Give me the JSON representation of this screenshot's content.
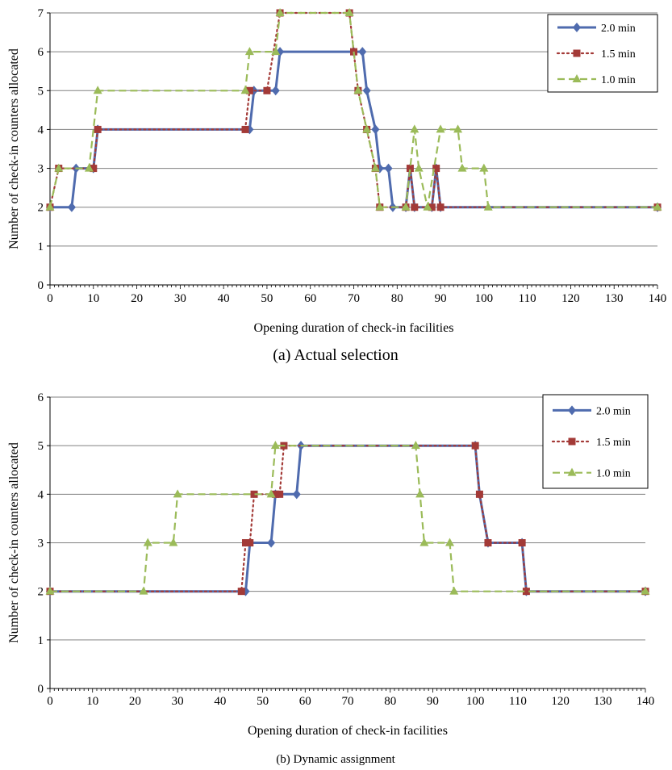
{
  "colors": {
    "series_2_0": "#4F6BAE",
    "series_1_5": "#A33A37",
    "series_1_0": "#9BBB59",
    "gridline": "#808080",
    "axis": "#000000"
  },
  "chart_data": [
    {
      "type": "line",
      "caption": "(a) Actual selection",
      "xlabel": "Opening duration of check-in facilities",
      "ylabel": "Number of check-in counters allocated",
      "xlim": [
        0,
        140
      ],
      "ylim": [
        0,
        7
      ],
      "xticks": [
        0,
        10,
        20,
        30,
        40,
        50,
        60,
        70,
        80,
        90,
        100,
        110,
        120,
        130,
        140
      ],
      "yticks": [
        0,
        1,
        2,
        3,
        4,
        5,
        6,
        7
      ],
      "grid": "horizontal",
      "legend_position": "top-right",
      "series": [
        {
          "name": "2.0 min",
          "color_key": "series_2_0",
          "marker": "diamond",
          "dash": "solid",
          "points": [
            [
              0,
              2
            ],
            [
              5,
              2
            ],
            [
              6,
              3
            ],
            [
              10,
              3
            ],
            [
              11,
              4
            ],
            [
              46,
              4
            ],
            [
              47,
              5
            ],
            [
              52,
              5
            ],
            [
              53,
              6
            ],
            [
              70,
              6
            ],
            [
              72,
              6
            ],
            [
              73,
              5
            ],
            [
              75,
              4
            ],
            [
              76,
              3
            ],
            [
              78,
              3
            ],
            [
              79,
              2
            ],
            [
              82,
              2
            ],
            [
              83,
              3
            ],
            [
              84,
              2
            ],
            [
              88,
              2
            ],
            [
              89,
              3
            ],
            [
              90,
              2
            ],
            [
              140,
              2
            ]
          ]
        },
        {
          "name": "1.5 min",
          "color_key": "series_1_5",
          "marker": "square",
          "dash": "dotted",
          "points": [
            [
              0,
              2
            ],
            [
              2,
              3
            ],
            [
              10,
              3
            ],
            [
              11,
              4
            ],
            [
              45,
              4
            ],
            [
              46,
              5
            ],
            [
              50,
              5
            ],
            [
              53,
              7
            ],
            [
              69,
              7
            ],
            [
              70,
              6
            ],
            [
              71,
              5
            ],
            [
              73,
              4
            ],
            [
              75,
              3
            ],
            [
              76,
              2
            ],
            [
              82,
              2
            ],
            [
              83,
              3
            ],
            [
              84,
              2
            ],
            [
              88,
              2
            ],
            [
              89,
              3
            ],
            [
              90,
              2
            ],
            [
              140,
              2
            ]
          ]
        },
        {
          "name": "1.0 min",
          "color_key": "series_1_0",
          "marker": "triangle",
          "dash": "dashed",
          "points": [
            [
              0,
              2
            ],
            [
              2,
              3
            ],
            [
              9,
              3
            ],
            [
              11,
              5
            ],
            [
              45,
              5
            ],
            [
              46,
              6
            ],
            [
              52,
              6
            ],
            [
              53,
              7
            ],
            [
              69,
              7
            ],
            [
              71,
              5
            ],
            [
              73,
              4
            ],
            [
              75,
              3
            ],
            [
              76,
              2
            ],
            [
              82,
              2
            ],
            [
              84,
              4
            ],
            [
              85,
              3
            ],
            [
              87,
              2
            ],
            [
              90,
              4
            ],
            [
              94,
              4
            ],
            [
              95,
              3
            ],
            [
              100,
              3
            ],
            [
              101,
              2
            ],
            [
              140,
              2
            ]
          ]
        }
      ]
    },
    {
      "type": "line",
      "caption": "(b) Dynamic assignment",
      "xlabel": "Opening duration of check-in facilities",
      "ylabel": "Number of check-in counters allocated",
      "xlim": [
        0,
        140
      ],
      "ylim": [
        0,
        6
      ],
      "xticks": [
        0,
        10,
        20,
        30,
        40,
        50,
        60,
        70,
        80,
        90,
        100,
        110,
        120,
        130,
        140
      ],
      "yticks": [
        0,
        1,
        2,
        3,
        4,
        5,
        6
      ],
      "grid": "horizontal",
      "legend_position": "top-right",
      "series": [
        {
          "name": "2.0 min",
          "color_key": "series_2_0",
          "marker": "diamond",
          "dash": "solid",
          "points": [
            [
              0,
              2
            ],
            [
              46,
              2
            ],
            [
              47,
              3
            ],
            [
              52,
              3
            ],
            [
              53,
              4
            ],
            [
              58,
              4
            ],
            [
              59,
              5
            ],
            [
              100,
              5
            ],
            [
              101,
              4
            ],
            [
              103,
              3
            ],
            [
              111,
              3
            ],
            [
              112,
              2
            ],
            [
              140,
              2
            ]
          ]
        },
        {
          "name": "1.5 min",
          "color_key": "series_1_5",
          "marker": "square",
          "dash": "dotted",
          "points": [
            [
              0,
              2
            ],
            [
              45,
              2
            ],
            [
              46,
              3
            ],
            [
              47,
              3
            ],
            [
              48,
              4
            ],
            [
              53,
              4
            ],
            [
              54,
              4
            ],
            [
              55,
              5
            ],
            [
              100,
              5
            ],
            [
              101,
              4
            ],
            [
              103,
              3
            ],
            [
              111,
              3
            ],
            [
              112,
              2
            ],
            [
              140,
              2
            ]
          ]
        },
        {
          "name": "1.0 min",
          "color_key": "series_1_0",
          "marker": "triangle",
          "dash": "dashed",
          "points": [
            [
              0,
              2
            ],
            [
              22,
              2
            ],
            [
              23,
              3
            ],
            [
              29,
              3
            ],
            [
              30,
              4
            ],
            [
              52,
              4
            ],
            [
              53,
              5
            ],
            [
              86,
              5
            ],
            [
              87,
              4
            ],
            [
              88,
              3
            ],
            [
              94,
              3
            ],
            [
              95,
              2
            ],
            [
              140,
              2
            ]
          ]
        }
      ]
    }
  ]
}
